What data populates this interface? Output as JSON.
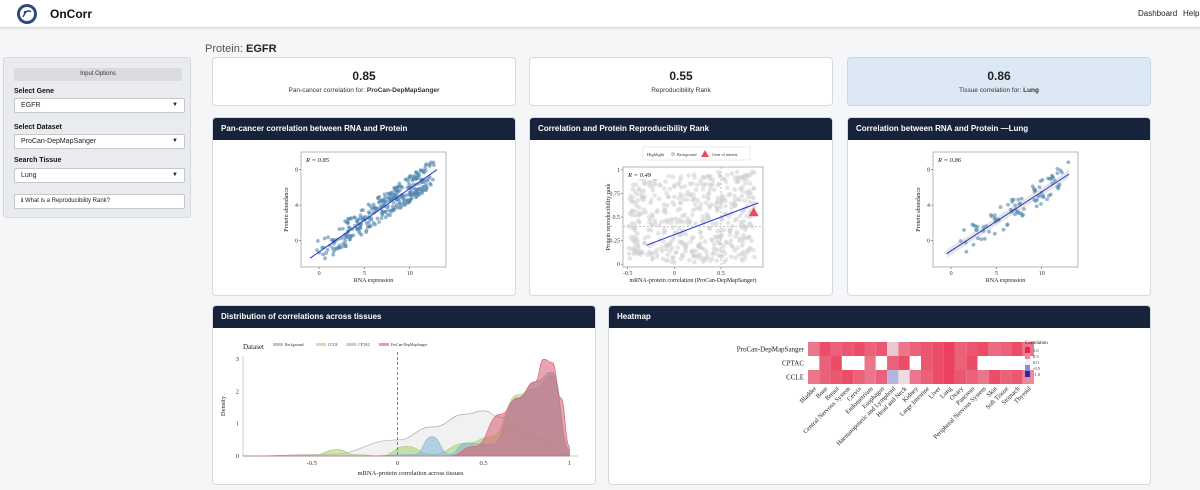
{
  "nav": {
    "brand": "OnCorr",
    "links": [
      "Dashboard",
      "Help"
    ]
  },
  "sidebar": {
    "header": "Input Options",
    "gene_label": "Select Gene",
    "gene_value": "EGFR",
    "dataset_label": "Select Dataset",
    "dataset_value": "ProCan-DepMapSanger",
    "tissue_label": "Search Tissue",
    "tissue_value": "Lung",
    "info_button": "What is a Reproducibility Rank?"
  },
  "page": {
    "title_prefix": "Protein:",
    "gene": "EGFR"
  },
  "stats": [
    {
      "value": "0.85",
      "caption": "Pan-cancer correlation for:",
      "caption_bold": "ProCan-DepMapSanger"
    },
    {
      "value": "0.55",
      "caption": "Reproducibility Rank",
      "caption_bold": ""
    },
    {
      "value": "0.86",
      "caption": "Tissue correlation for:",
      "caption_bold": "Lung"
    }
  ],
  "cards": {
    "pan": "Pan-cancer correlation between RNA and Protein",
    "repro": "Correlation and Protein Reproducibility Rank",
    "lung": "Correlation between RNA and Protein —Lung",
    "dist": "Distribution of correlations across tissues",
    "heat": "Heatmap"
  },
  "chart_data": [
    {
      "type": "scatter",
      "id": "pan",
      "r_label": "R = 0.85",
      "xlabel": "RNA expression",
      "ylabel": "Protein abundance",
      "xticks": [
        0,
        5,
        10
      ],
      "yticks": [
        0,
        4,
        8
      ],
      "xlim": [
        -2,
        14
      ],
      "ylim": [
        -3,
        10
      ],
      "fit": [
        [
          -1,
          -2
        ],
        [
          13,
          8
        ]
      ]
    },
    {
      "type": "scatter",
      "id": "repro",
      "r_label": "R = 0.49",
      "xlabel": "mRNA-protein correlation (ProCan-DepMapSanger)",
      "ylabel": "Protein reproducibility rank",
      "xticks": [
        -0.5,
        0.0,
        0.5
      ],
      "yticks": [
        0.0,
        0.25,
        0.5,
        0.75,
        1.0
      ],
      "xlim": [
        -0.55,
        0.95
      ],
      "ylim": [
        -0.03,
        1.03
      ],
      "legend_title": "Highlight",
      "legend": [
        "Background",
        "Gene of interest"
      ],
      "highlight": {
        "x": 0.85,
        "y": 0.55
      },
      "fit": [
        [
          -0.3,
          0.2
        ],
        [
          0.9,
          0.65
        ]
      ],
      "hline": 0.4,
      "vline": 0.5
    },
    {
      "type": "scatter",
      "id": "lung",
      "r_label": "R = 0.86",
      "xlabel": "RNA expression",
      "ylabel": "Protein abundance",
      "xticks": [
        0,
        5,
        10
      ],
      "yticks": [
        0,
        4,
        8
      ],
      "xlim": [
        -2,
        14
      ],
      "ylim": [
        -3,
        10
      ],
      "fit": [
        [
          -0.5,
          -1.5
        ],
        [
          13,
          7.5
        ]
      ]
    },
    {
      "type": "area",
      "id": "dist",
      "title": "Dataset",
      "xlabel": "mRNA-protein correlation across tissues",
      "ylabel": "Density",
      "xticks": [
        -0.5,
        0.0,
        0.5,
        1.0
      ],
      "yticks": [
        0,
        1,
        2,
        3
      ],
      "xlim": [
        -0.9,
        1.05
      ],
      "ylim": [
        0,
        3.1
      ],
      "series": [
        {
          "name": "Background",
          "color": "#9e9e9e",
          "points": [
            [
              -0.9,
              0
            ],
            [
              -0.4,
              0.05
            ],
            [
              0,
              0.5
            ],
            [
              0.2,
              0.9
            ],
            [
              0.4,
              1.3
            ],
            [
              0.5,
              1.4
            ],
            [
              0.6,
              1.2
            ],
            [
              0.8,
              0.6
            ],
            [
              1.0,
              0.05
            ]
          ]
        },
        {
          "name": "CCLE",
          "color": "#a6cf73",
          "points": [
            [
              -0.9,
              0
            ],
            [
              -0.5,
              0.02
            ],
            [
              -0.35,
              0.2
            ],
            [
              -0.25,
              0.05
            ],
            [
              -0.1,
              0.0
            ],
            [
              0.05,
              0.3
            ],
            [
              0.2,
              0.05
            ],
            [
              0.4,
              0.4
            ],
            [
              0.55,
              0.6
            ],
            [
              0.7,
              1.9
            ],
            [
              0.8,
              2.1
            ],
            [
              0.9,
              2.5
            ],
            [
              1.0,
              0.1
            ]
          ]
        },
        {
          "name": "CPTAC",
          "color": "#7fb3d5",
          "points": [
            [
              -0.9,
              0
            ],
            [
              -0.2,
              0
            ],
            [
              0.1,
              0.05
            ],
            [
              0.2,
              0.6
            ],
            [
              0.3,
              0.05
            ],
            [
              0.4,
              0.4
            ],
            [
              0.55,
              0.35
            ],
            [
              0.7,
              1.8
            ],
            [
              0.8,
              2.3
            ],
            [
              0.9,
              2.6
            ],
            [
              1.0,
              0.2
            ]
          ]
        },
        {
          "name": "ProCan-DepMapSanger",
          "color": "#d9586f",
          "points": [
            [
              -0.9,
              0
            ],
            [
              0.3,
              0
            ],
            [
              0.45,
              0.3
            ],
            [
              0.6,
              1.3
            ],
            [
              0.7,
              1.8
            ],
            [
              0.8,
              2.3
            ],
            [
              0.85,
              3.0
            ],
            [
              0.9,
              2.9
            ],
            [
              0.95,
              1.8
            ],
            [
              1.0,
              0.3
            ]
          ]
        }
      ]
    },
    {
      "type": "heatmap",
      "id": "heat",
      "rows": [
        "ProCan-DepMapSanger",
        "CPTAC",
        "CCLE"
      ],
      "cols": [
        "Bladder",
        "Bone",
        "Breast",
        "Central Nervous System",
        "Cervix",
        "Endometrium",
        "Esophagus",
        "Haematopoietic and Lymphoid",
        "Head and Neck",
        "Kidney",
        "Large Intestine",
        "Liver",
        "Lung",
        "Ovary",
        "Pancreas",
        "Peripheral Nervous System",
        "Skin",
        "Soft Tissue",
        "Stomach",
        "Thyroid"
      ],
      "values": [
        [
          0.6,
          0.8,
          0.7,
          0.75,
          0.8,
          0.7,
          0.75,
          0.2,
          0.6,
          0.7,
          0.75,
          0.8,
          0.86,
          0.7,
          0.75,
          0.8,
          0.65,
          0.7,
          0.8,
          0.6
        ],
        [
          null,
          0.7,
          0.8,
          null,
          null,
          0.6,
          null,
          0.7,
          0.8,
          null,
          0.75,
          0.8,
          0.85,
          0.7,
          0.8,
          null,
          null,
          null,
          null,
          null
        ],
        [
          0.6,
          0.7,
          0.75,
          0.8,
          0.7,
          0.6,
          0.7,
          -0.3,
          0.1,
          0.6,
          0.7,
          0.8,
          0.85,
          0.75,
          0.7,
          0.6,
          0.8,
          0.7,
          0.75,
          0.5
        ]
      ],
      "legend_title": "Correlation",
      "legend_ticks": [
        "1.0",
        "0.5",
        "0.0",
        "-0.5",
        "-1.0"
      ]
    }
  ]
}
